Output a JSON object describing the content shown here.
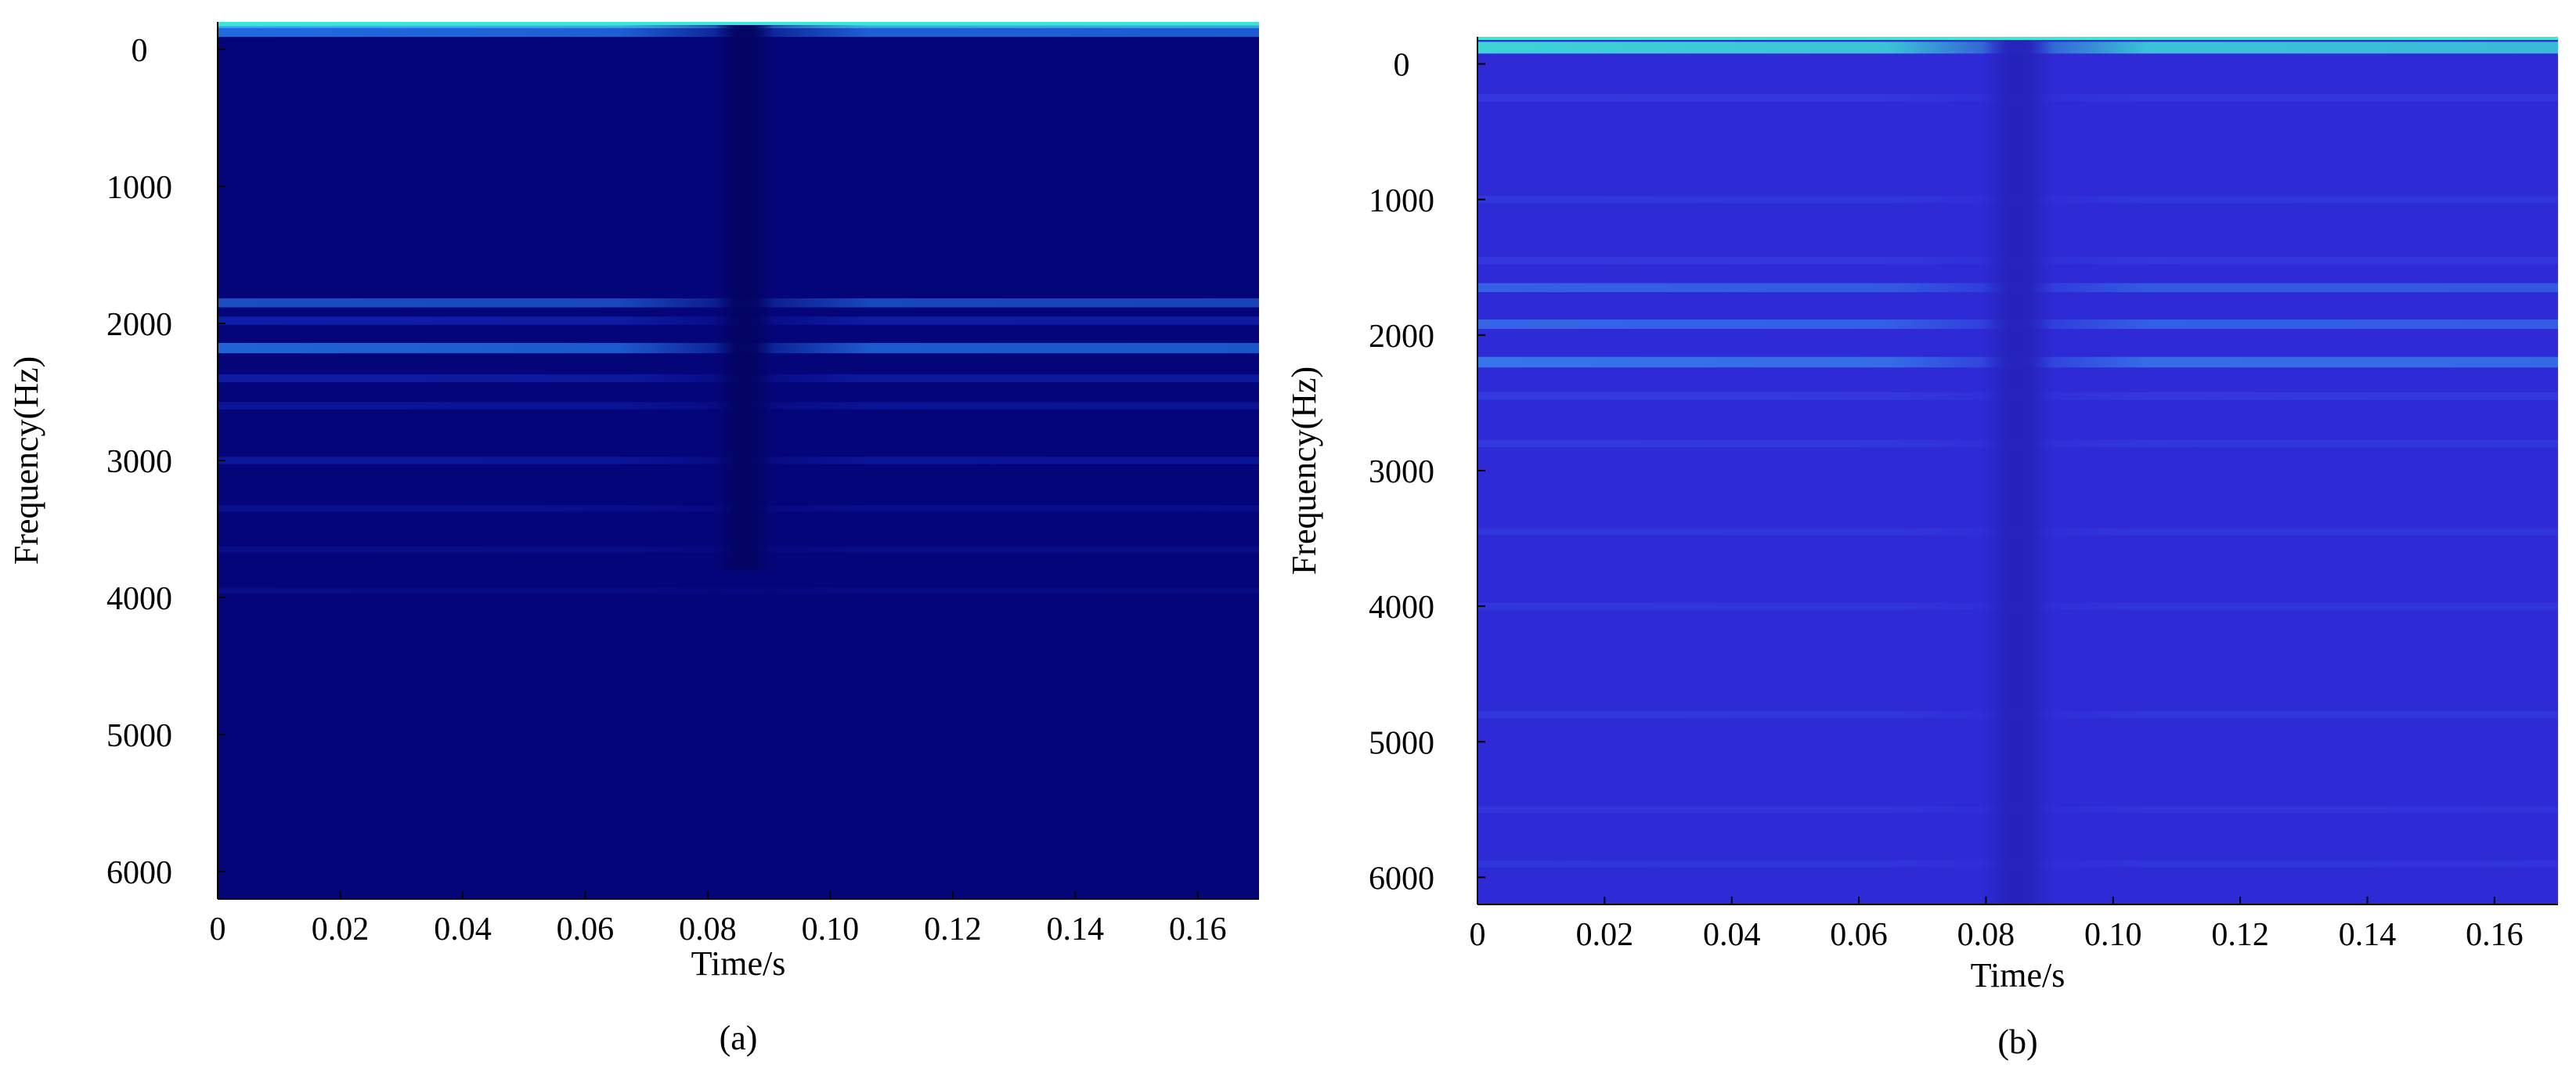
{
  "chart_data": [
    {
      "type": "heatmap",
      "panel_label": "(a)",
      "xlabel": "Time/s",
      "ylabel": "Frequency(Hz)",
      "xlim": [
        0,
        0.17
      ],
      "ylim": [
        -200,
        6200
      ],
      "y_reversed": true,
      "x_ticks": [
        "0",
        "0.02",
        "0.04",
        "0.06",
        "0.08",
        "0.10",
        "0.12",
        "0.14",
        "0.16"
      ],
      "y_ticks": [
        "0",
        "1000",
        "2000",
        "3000",
        "4000",
        "5000",
        "6000"
      ],
      "colormap": {
        "background": "#05057a",
        "mid": "#1a3ce0",
        "high": "#2a8cff",
        "peak": "#3fe6d8"
      },
      "vertical_null_band": {
        "center_time": 0.086,
        "width": 0.006,
        "freq_max": 3800
      },
      "bands": [
        {
          "freq": -200,
          "intensity": 1.0
        },
        {
          "freq": -130,
          "intensity": 0.75
        },
        {
          "freq": 1850,
          "intensity": 0.55
        },
        {
          "freq": 1980,
          "intensity": 0.45
        },
        {
          "freq": 2180,
          "intensity": 0.7
        },
        {
          "freq": 2400,
          "intensity": 0.4
        },
        {
          "freq": 2600,
          "intensity": 0.3
        },
        {
          "freq": 3000,
          "intensity": 0.32
        },
        {
          "freq": 3350,
          "intensity": 0.2
        },
        {
          "freq": 3650,
          "intensity": 0.15
        },
        {
          "freq": 3950,
          "intensity": 0.12
        }
      ]
    },
    {
      "type": "heatmap",
      "panel_label": "(b)",
      "xlabel": "Time/s",
      "ylabel": "Frequency(Hz)",
      "xlim": [
        0,
        0.17
      ],
      "ylim": [
        -200,
        6200
      ],
      "y_reversed": true,
      "x_ticks": [
        "0",
        "0.02",
        "0.04",
        "0.06",
        "0.08",
        "0.10",
        "0.12",
        "0.14",
        "0.16"
      ],
      "y_ticks": [
        "0",
        "1000",
        "2000",
        "3000",
        "4000",
        "5000",
        "6000"
      ],
      "colormap": {
        "background": "#2d2ad6",
        "mid": "#3f52ec",
        "high": "#3b8cf0",
        "peak": "#3fe6d8"
      },
      "vertical_null_band": {
        "center_time": 0.085,
        "width": 0.007,
        "freq_max": 6200
      },
      "bands": [
        {
          "freq": -120,
          "intensity": 0.9
        },
        {
          "freq": 250,
          "intensity": 0.35
        },
        {
          "freq": 1000,
          "intensity": 0.3
        },
        {
          "freq": 1450,
          "intensity": 0.35
        },
        {
          "freq": 1650,
          "intensity": 0.55
        },
        {
          "freq": 1920,
          "intensity": 0.6
        },
        {
          "freq": 2200,
          "intensity": 0.75
        },
        {
          "freq": 2450,
          "intensity": 0.4
        },
        {
          "freq": 2800,
          "intensity": 0.35
        },
        {
          "freq": 3450,
          "intensity": 0.3
        },
        {
          "freq": 4000,
          "intensity": 0.3
        },
        {
          "freq": 4800,
          "intensity": 0.3
        },
        {
          "freq": 5500,
          "intensity": 0.25
        },
        {
          "freq": 5900,
          "intensity": 0.25
        }
      ]
    }
  ]
}
